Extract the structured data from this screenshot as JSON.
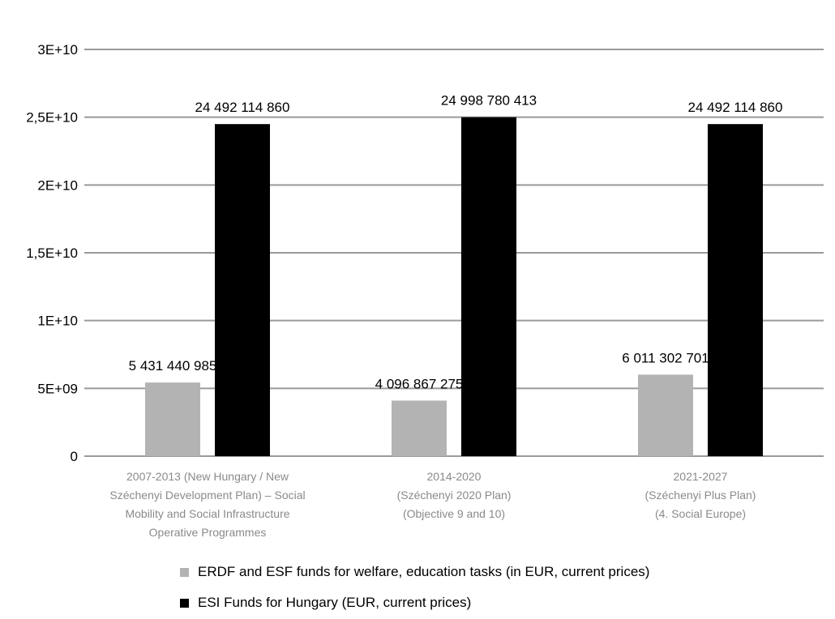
{
  "chart_data": {
    "type": "bar",
    "categories": [
      [
        "2007-2013 (New Hungary / New",
        "Széchenyi Development Plan) – Social",
        "Mobility and Social Infrastructure",
        "Operative Programmes"
      ],
      [
        "2014-2020",
        "(Széchenyi 2020 Plan)",
        "(Objective 9 and 10)"
      ],
      [
        "2021-2027",
        "(Széchenyi Plus Plan)",
        "(4. Social Europe)"
      ]
    ],
    "series": [
      {
        "name": "ERDF and ESF funds for welfare, education tasks (in EUR, current prices)",
        "values": [
          5431440985,
          4096867275,
          6011302701
        ],
        "labels": [
          "5 431 440 985",
          "4 096 867 275",
          "6 011 302 701"
        ],
        "color": "#b3b3b3"
      },
      {
        "name": "ESI Funds for Hungary (EUR, current prices)",
        "values": [
          24492114860,
          24998780413,
          24492114860
        ],
        "labels": [
          "24 492 114 860",
          "24 998 780 413",
          "24 492 114 860"
        ],
        "color": "#000000"
      }
    ],
    "yticks": [
      {
        "value": 0,
        "label": "0"
      },
      {
        "value": 5000000000,
        "label": "5E+09"
      },
      {
        "value": 10000000000,
        "label": "1E+10"
      },
      {
        "value": 15000000000,
        "label": "1,5E+10"
      },
      {
        "value": 20000000000,
        "label": "2E+10"
      },
      {
        "value": 25000000000,
        "label": "2,5E+10"
      },
      {
        "value": 30000000000,
        "label": "3E+10"
      }
    ],
    "ylim": [
      0,
      30000000000
    ],
    "grid": true,
    "gridline_color": "#9a9a9a",
    "legend_position": "bottom"
  }
}
